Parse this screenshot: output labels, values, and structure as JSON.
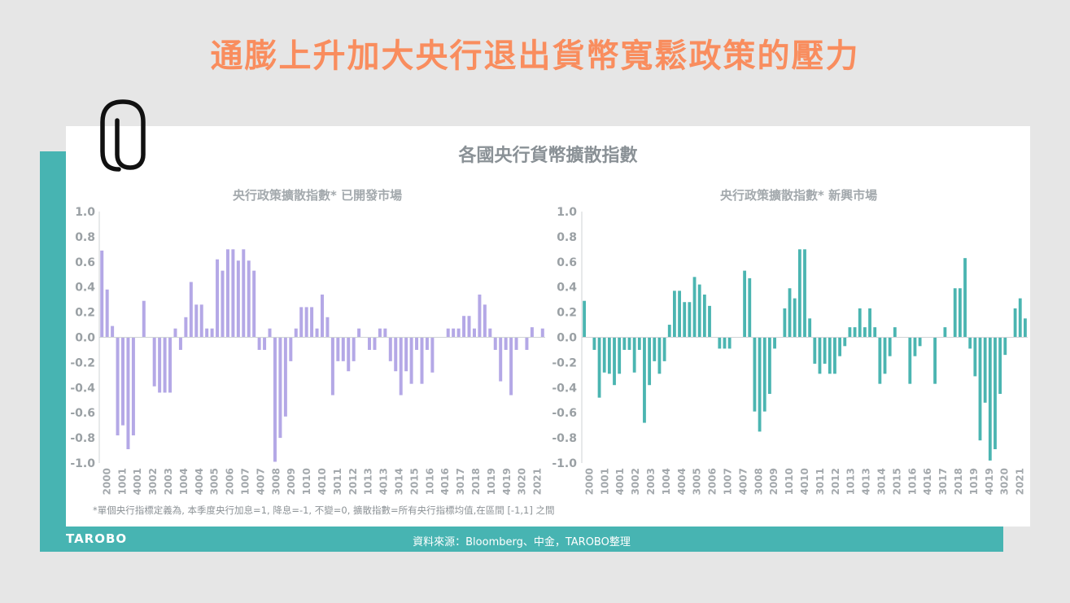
{
  "page": {
    "title": "通膨上升加大央行退出貨幣寬鬆政策的壓力",
    "source": "資料來源：Bloomberg、中金，TAROBO整理",
    "brand": "TAROBO",
    "colors": {
      "title": "#f98d5e",
      "band": "#47b4b2"
    }
  },
  "card": {
    "title": "各國央行貨幣擴散指數",
    "footnote": "*單個央行指標定義為, 本季度央行加息=1, 降息=-1, 不變=0, 擴散指數=所有央行指標均值,在區間 [-1,1] 之間",
    "icon": "paperclip-icon"
  },
  "chart_data": [
    {
      "type": "bar",
      "title": "央行政策擴散指數* 已開發市場",
      "color": "#b4a8e6",
      "ylim": [
        -1.0,
        1.0
      ],
      "yticks": [
        "1.0",
        "0.8",
        "0.6",
        "0.4",
        "0.2",
        "0.0",
        "-0.2",
        "-0.4",
        "-0.6",
        "-0.8",
        "-1.0"
      ],
      "xticks": [
        "2000",
        "1001",
        "4001",
        "3002",
        "2003",
        "1004",
        "4004",
        "3005",
        "2006",
        "1007",
        "4007",
        "3008",
        "2009",
        "1010",
        "4010",
        "3011",
        "2012",
        "1013",
        "4013",
        "3014",
        "2015",
        "1016",
        "4016",
        "3017",
        "2018",
        "1019",
        "4019",
        "3020",
        "2021"
      ],
      "values": [
        0.69,
        0.38,
        0.09,
        -0.78,
        -0.7,
        -0.89,
        -0.78,
        0,
        0.29,
        0,
        -0.39,
        -0.44,
        -0.44,
        -0.44,
        0.07,
        -0.1,
        0.16,
        0.44,
        0.26,
        0.26,
        0.07,
        0.07,
        0.62,
        0.53,
        0.7,
        0.7,
        0.61,
        0.7,
        0.61,
        0.53,
        -0.1,
        -0.1,
        0.07,
        -0.99,
        -0.8,
        -0.63,
        -0.19,
        0.07,
        0.24,
        0.24,
        0.24,
        0.07,
        0.34,
        0.16,
        -0.46,
        -0.19,
        -0.19,
        -0.27,
        -0.19,
        0.07,
        0,
        -0.1,
        -0.1,
        0.07,
        0.07,
        -0.19,
        -0.27,
        -0.46,
        -0.27,
        -0.37,
        -0.1,
        -0.37,
        -0.1,
        -0.28,
        0,
        0,
        0.07,
        0.07,
        0.07,
        0.17,
        0.17,
        0.07,
        0.34,
        0.26,
        0.07,
        -0.1,
        -0.35,
        -0.1,
        -0.46,
        -0.1,
        0,
        -0.1,
        0.08,
        0,
        0.07
      ]
    },
    {
      "type": "bar",
      "title": "央行政策擴散指數* 新興市場",
      "color": "#4bb5b1",
      "ylim": [
        -1.0,
        1.0
      ],
      "yticks": [
        "1.0",
        "0.8",
        "0.6",
        "0.4",
        "0.2",
        "0.0",
        "-0.2",
        "-0.4",
        "-0.6",
        "-0.8",
        "-1.0"
      ],
      "xticks": [
        "2000",
        "1001",
        "4001",
        "3002",
        "2003",
        "1004",
        "4004",
        "3005",
        "2006",
        "1007",
        "4007",
        "3008",
        "2009",
        "1010",
        "4010",
        "3011",
        "2012",
        "1013",
        "4013",
        "3014",
        "2015",
        "1016",
        "4016",
        "3017",
        "2018",
        "1019",
        "4019",
        "3020",
        "2021"
      ],
      "values": [
        0.29,
        0,
        -0.1,
        -0.48,
        -0.28,
        -0.29,
        -0.38,
        -0.29,
        -0.1,
        -0.1,
        -0.28,
        -0.1,
        -0.68,
        -0.38,
        -0.19,
        -0.29,
        -0.19,
        0.1,
        0.37,
        0.37,
        0.28,
        0.28,
        0.48,
        0.42,
        0.34,
        0.25,
        0,
        -0.09,
        -0.09,
        -0.09,
        0,
        0,
        0.53,
        0.47,
        -0.59,
        -0.75,
        -0.59,
        -0.45,
        -0.09,
        0,
        0.23,
        0.39,
        0.31,
        0.7,
        0.7,
        0.15,
        -0.21,
        -0.29,
        -0.21,
        -0.29,
        -0.29,
        -0.15,
        -0.07,
        0.08,
        0.08,
        0.23,
        0.08,
        0.23,
        0.08,
        -0.37,
        -0.29,
        -0.15,
        0.08,
        0,
        0,
        -0.37,
        -0.15,
        -0.07,
        0,
        0,
        -0.37,
        0,
        0.08,
        0,
        0.39,
        0.39,
        0.63,
        -0.09,
        -0.31,
        -0.82,
        -0.52,
        -0.98,
        -0.89,
        -0.45,
        -0.14,
        0,
        0.23,
        0.31,
        0.15
      ]
    }
  ]
}
